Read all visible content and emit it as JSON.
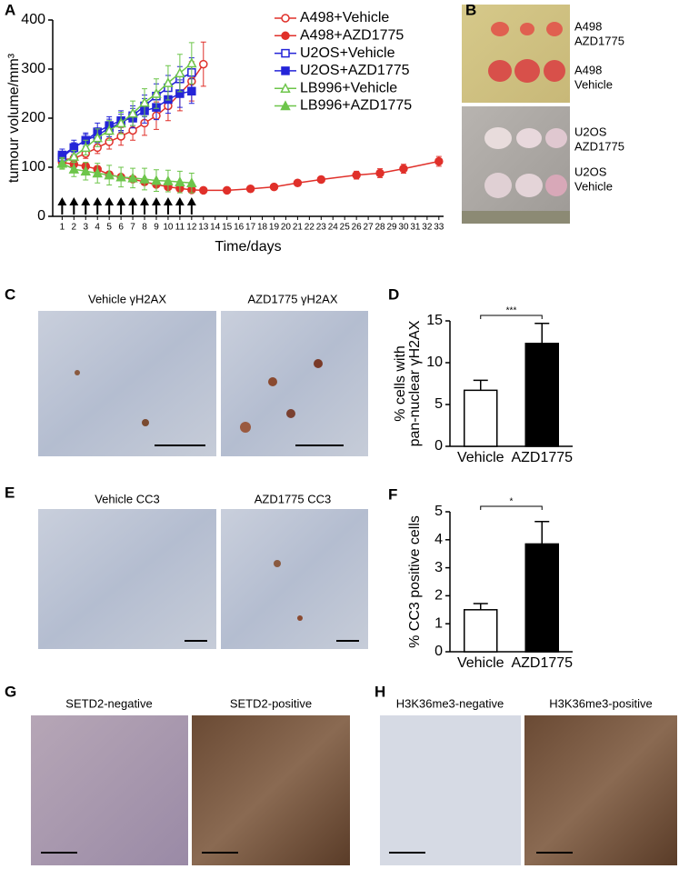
{
  "panels": {
    "letters": [
      "A",
      "B",
      "C",
      "D",
      "E",
      "F",
      "G",
      "H"
    ],
    "photo_labels": [
      [
        "A498",
        "AZD1775"
      ],
      [
        "A498",
        "Vehicle"
      ],
      [
        "U2OS",
        "AZD1775"
      ],
      [
        "U2OS",
        "Vehicle"
      ]
    ],
    "captions": [
      "Vehicle γH2AX",
      "AZD1775 γH2AX",
      "Vehicle CC3",
      "AZD1775 CC3",
      "SETD2-negative",
      "SETD2-positive",
      "H3K36me3-negative",
      "H3K36me3-positive"
    ]
  },
  "chart_data": [
    {
      "type": "line",
      "xlabel": "Time/days",
      "ylabel": "tumour volume/mm³",
      "xlim": [
        0.2,
        33.4
      ],
      "ylim": [
        0,
        400
      ],
      "yticks": [
        0,
        100,
        200,
        300,
        400
      ],
      "xticks": [
        1,
        2,
        3,
        4,
        5,
        6,
        7,
        8,
        9,
        10,
        11,
        12,
        13,
        14,
        15,
        16,
        17,
        18,
        19,
        20,
        21,
        22,
        23,
        24,
        25,
        26,
        27,
        28,
        29,
        30,
        31,
        32,
        33
      ],
      "arrows": [
        1,
        2,
        3,
        4,
        5,
        6,
        7,
        8,
        9,
        10,
        11,
        12
      ],
      "series": [
        {
          "name": "A498+Vehicle",
          "color": "#e0302a",
          "marker": "circle",
          "filled": false,
          "x": [
            1,
            2,
            3,
            4,
            5,
            6,
            7,
            8,
            9,
            10,
            11,
            12,
            13
          ],
          "values": [
            115,
            118,
            128,
            140,
            152,
            163,
            175,
            190,
            205,
            225,
            250,
            275,
            310
          ],
          "errors": [
            8,
            8,
            10,
            12,
            15,
            18,
            20,
            25,
            28,
            30,
            35,
            40,
            45
          ]
        },
        {
          "name": "A498+AZD1775",
          "color": "#e0302a",
          "marker": "circle",
          "filled": true,
          "x": [
            1,
            2,
            3,
            4,
            5,
            6,
            7,
            8,
            9,
            10,
            11,
            12,
            13,
            15,
            17,
            19,
            21,
            23,
            26,
            28,
            30,
            33
          ],
          "values": [
            110,
            106,
            102,
            96,
            85,
            80,
            76,
            70,
            65,
            60,
            57,
            54,
            53,
            53,
            56,
            60,
            68,
            75,
            84,
            88,
            97,
            112
          ],
          "errors": [
            8,
            6,
            6,
            6,
            6,
            5,
            5,
            5,
            5,
            4,
            4,
            4,
            4,
            4,
            4,
            5,
            5,
            6,
            8,
            9,
            9,
            10
          ]
        },
        {
          "name": "U2OS+Vehicle",
          "color": "#2424d8",
          "marker": "square",
          "filled": false,
          "x": [
            1,
            2,
            3,
            4,
            5,
            6,
            7,
            8,
            9,
            10,
            11,
            12
          ],
          "values": [
            120,
            140,
            155,
            165,
            180,
            190,
            205,
            225,
            245,
            262,
            280,
            293
          ],
          "errors": [
            10,
            10,
            12,
            15,
            18,
            18,
            20,
            22,
            25,
            25,
            25,
            30
          ]
        },
        {
          "name": "U2OS+AZD1775",
          "color": "#2424d8",
          "marker": "square",
          "filled": true,
          "x": [
            1,
            2,
            3,
            4,
            5,
            6,
            7,
            8,
            9,
            10,
            11,
            12
          ],
          "values": [
            125,
            140,
            155,
            172,
            185,
            195,
            200,
            215,
            222,
            238,
            250,
            255
          ],
          "errors": [
            12,
            15,
            15,
            18,
            18,
            20,
            20,
            25,
            25,
            28,
            28,
            25
          ]
        },
        {
          "name": "LB996+Vehicle",
          "color": "#6dc54a",
          "marker": "triangle",
          "filled": false,
          "x": [
            1,
            2,
            3,
            4,
            5,
            6,
            7,
            8,
            9,
            10,
            11,
            12
          ],
          "values": [
            108,
            122,
            140,
            160,
            175,
            190,
            210,
            232,
            250,
            272,
            292,
            312
          ],
          "errors": [
            10,
            12,
            15,
            18,
            20,
            22,
            25,
            28,
            30,
            35,
            38,
            42
          ]
        },
        {
          "name": "LB996+AZD1775",
          "color": "#6dc54a",
          "marker": "triangle",
          "filled": true,
          "x": [
            1,
            2,
            3,
            4,
            5,
            6,
            7,
            8,
            9,
            10,
            11,
            12
          ],
          "values": [
            108,
            96,
            92,
            88,
            84,
            80,
            78,
            76,
            73,
            72,
            70,
            68
          ],
          "errors": [
            12,
            15,
            18,
            20,
            20,
            20,
            20,
            22,
            22,
            22,
            22,
            20
          ]
        }
      ]
    },
    {
      "type": "bar",
      "ylabel": [
        "% cells with",
        "pan-nuclear γH2AX"
      ],
      "categories": [
        "Vehicle",
        "AZD1775"
      ],
      "values": [
        6.7,
        12.3
      ],
      "errors": [
        1.2,
        2.4
      ],
      "colors": [
        "#ffffff",
        "#000000"
      ],
      "ylim": [
        0,
        15
      ],
      "yticks": [
        0,
        5,
        10,
        15
      ],
      "annotation": "***"
    },
    {
      "type": "bar",
      "ylabel": [
        "% CC3 positive cells"
      ],
      "categories": [
        "Vehicle",
        "AZD1775"
      ],
      "values": [
        1.5,
        3.85
      ],
      "errors": [
        0.22,
        0.8
      ],
      "colors": [
        "#ffffff",
        "#000000"
      ],
      "ylim": [
        0,
        5
      ],
      "yticks": [
        0,
        1,
        2,
        3,
        4,
        5
      ],
      "annotation": "*"
    }
  ]
}
